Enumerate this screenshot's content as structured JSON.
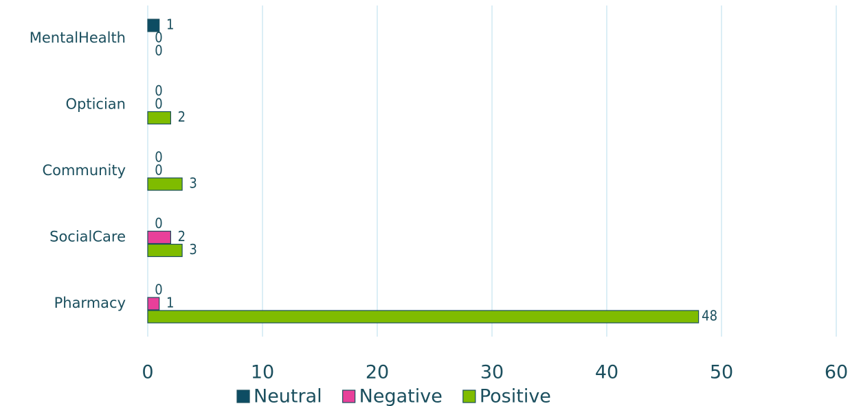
{
  "chart_data": {
    "type": "barh",
    "categories": [
      "MentalHealth",
      "Optician",
      "Community",
      "SocialCare",
      "Pharmacy"
    ],
    "series": [
      {
        "name": "Neutral",
        "color": "#0e4d63",
        "values": [
          1,
          0,
          0,
          0,
          0
        ]
      },
      {
        "name": "Negative",
        "color": "#e8409a",
        "values": [
          0,
          0,
          0,
          2,
          1
        ]
      },
      {
        "name": "Positive",
        "color": "#7fbc00",
        "values": [
          0,
          2,
          3,
          3,
          48
        ]
      }
    ],
    "xlim": [
      0,
      60
    ],
    "xticks": [
      0,
      10,
      20,
      30,
      40,
      50,
      60
    ],
    "grid": true,
    "legend": "bottom"
  }
}
